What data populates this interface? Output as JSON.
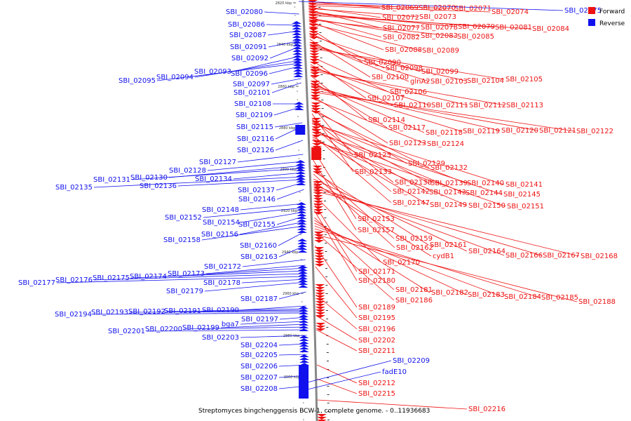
{
  "caption": "Streptomyces bingchenggensis BCW-1, complete genome. - 0..11936683",
  "legend": [
    {
      "label": "Forward",
      "color": "#ee1111"
    },
    {
      "label": "Reverse",
      "color": "#1111ee"
    }
  ],
  "ticks": [
    "2820 kbp",
    "2840 kbp",
    "2860 kbp",
    "2880 kbp",
    "2900 kbp",
    "2920 kbp",
    "2940 kbp",
    "2960 kbp",
    "2980 kbp",
    "3000 kbp"
  ],
  "forward_labels": [
    "SBI_02069",
    "SBI_02070",
    "SBI_02071",
    "SBI_02074",
    "SBI_02072",
    "SBI_02073",
    "SBI_02077",
    "SBI_02078",
    "SBI_02079",
    "SBI_02081",
    "SBI_02084",
    "SBI_02082",
    "SBI_02083",
    "SBI_02085",
    "SBI_02088",
    "SBI_02089",
    "SBI_02090",
    "SBI_02098",
    "SBI_02099",
    "SBI_02100",
    "glnA2",
    "SBI_02103",
    "SBI_02104",
    "SBI_02105",
    "SBI_02106",
    "SBI_02107",
    "SBI_02110",
    "SBI_02111",
    "SBI_02112",
    "SBI_02113",
    "SBI_02114",
    "SBI_02117",
    "SBI_02118",
    "SBI_02119",
    "SBI_02120",
    "SBI_02121",
    "SBI_02122",
    "SBI_02123",
    "SBI_02124",
    "SBI_02125",
    "SBI_02129",
    "SBI_02132",
    "SBI_02133",
    "SBI_02138",
    "SBI_02139",
    "SBI_02140",
    "SBI_02141",
    "SBI_02142",
    "SBI_02143",
    "SBI_02144",
    "SBI_02145",
    "SBI_02147",
    "SBI_02149",
    "SBI_02150",
    "SBI_02151",
    "SBI_02153",
    "SBI_02157",
    "SBI_02159",
    "SBI_02161",
    "SBI_02162",
    "SBI_02164",
    "cydB1",
    "SBI_02166",
    "SBI_02167",
    "SBI_02168",
    "SBI_02170",
    "SBI_02171",
    "SBI_02180",
    "SBI_02181",
    "SBI_02182",
    "SBI_02183",
    "SBI_02184",
    "SBI_02185",
    "SBI_02186",
    "SBI_02188",
    "SBI_02189",
    "SBI_02195",
    "SBI_02196",
    "SBI_02202",
    "SBI_02211",
    "SBI_02212",
    "SBI_02215",
    "SBI_02216"
  ],
  "reverse_labels": [
    "SBI_02075",
    "SBI_02080",
    "SBI_02086",
    "SBI_02087",
    "SBI_02091",
    "SBI_02092",
    "SBI_02093",
    "SBI_02094",
    "SBI_02095",
    "SBI_02096",
    "SBI_02097",
    "SBI_02101",
    "SBI_02108",
    "SBI_02109",
    "SBI_02115",
    "SBI_02116",
    "SBI_02126",
    "SBI_02127",
    "SBI_02128",
    "SBI_02130",
    "SBI_02131",
    "SBI_02134",
    "SBI_02135",
    "SBI_02136",
    "SBI_02137",
    "SBI_02146",
    "SBI_02148",
    "SBI_02152",
    "SBI_02154",
    "SBI_02155",
    "SBI_02156",
    "SBI_02158",
    "SBI_02160",
    "SBI_02163",
    "SBI_02172",
    "SBI_02173",
    "SBI_02174",
    "SBI_02175",
    "SBI_02176",
    "SBI_02177",
    "SBI_02178",
    "SBI_02179",
    "SBI_02187",
    "SBI_02190",
    "SBI_02191",
    "SBI_02192",
    "SBI_02193",
    "SBI_02194",
    "SBI_02197",
    "bga7",
    "SBI_02199",
    "SBI_02200",
    "SBI_02201",
    "SBI_02203",
    "SBI_02204",
    "SBI_02205",
    "SBI_02206",
    "SBI_02207",
    "SBI_02208",
    "SBI_02209",
    "fadE10"
  ]
}
